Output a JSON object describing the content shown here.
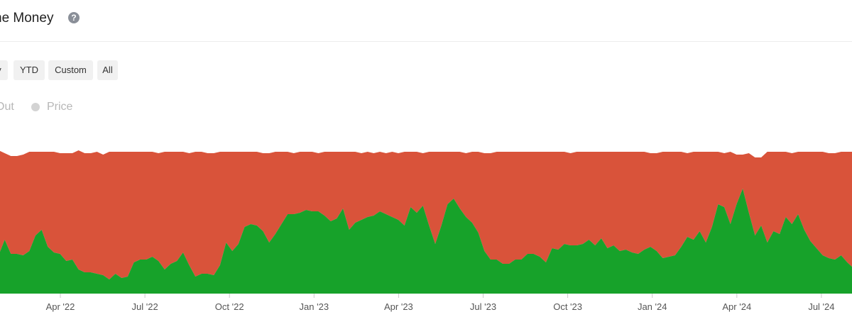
{
  "header": {
    "title": "he Money",
    "help_icon": "question-circle-icon"
  },
  "range_buttons": [
    "y",
    "YTD",
    "Custom",
    "All"
  ],
  "legend": {
    "items": [
      {
        "label": "Out",
        "color": "#d3d3d3"
      },
      {
        "label": "Price",
        "color": "#d3d3d3"
      }
    ]
  },
  "chart_data": {
    "type": "area",
    "stacked": true,
    "colors": {
      "in": "#17a22a",
      "out": "#d9533a"
    },
    "x_ticks": [
      "Apr '22",
      "Jul '22",
      "Oct '22",
      "Jan '23",
      "Apr '23",
      "Jul '23",
      "Oct '23",
      "Jan '24",
      "Apr '24",
      "Jul '24"
    ],
    "ylim": [
      0,
      100
    ],
    "series": [
      {
        "key": "in",
        "values": [
          27,
          38,
          28,
          28,
          27,
          30,
          41,
          45,
          33,
          29,
          28,
          23,
          24,
          17,
          15,
          15,
          14,
          13,
          10,
          14,
          11,
          12,
          22,
          24,
          24,
          26,
          23,
          17,
          21,
          23,
          29,
          20,
          12,
          14,
          14,
          13,
          20,
          36,
          30,
          35,
          47,
          49,
          48,
          44,
          36,
          42,
          49,
          56,
          56,
          57,
          59,
          58,
          58,
          55,
          51,
          53,
          60,
          45,
          50,
          52,
          54,
          55,
          58,
          56,
          54,
          52,
          48,
          61,
          57,
          62,
          48,
          35,
          48,
          63,
          67,
          60,
          54,
          50,
          43,
          30,
          24,
          24,
          21,
          21,
          24,
          24,
          28,
          28,
          26,
          22,
          32,
          31,
          35,
          34,
          34,
          35,
          38,
          34,
          39,
          32,
          34,
          30,
          31,
          29,
          28,
          31,
          33,
          30,
          25,
          26,
          27,
          33,
          40,
          38,
          44,
          36,
          47,
          63,
          61,
          49,
          63,
          74,
          57,
          41,
          48,
          36,
          44,
          42,
          54,
          49,
          56,
          45,
          37,
          32,
          27,
          25,
          24,
          27,
          22,
          18
        ]
      },
      {
        "key": "out",
        "values": [
          74,
          61,
          69,
          69,
          71,
          70,
          59,
          55,
          67,
          71,
          71,
          76,
          75,
          84,
          84,
          84,
          86,
          85,
          90,
          86,
          89,
          88,
          78,
          76,
          76,
          74,
          76,
          83,
          79,
          77,
          71,
          79,
          88,
          86,
          85,
          86,
          80,
          64,
          70,
          65,
          53,
          51,
          52,
          55,
          63,
          58,
          51,
          44,
          43,
          43,
          41,
          42,
          41,
          45,
          49,
          47,
          40,
          55,
          50,
          47,
          46,
          44,
          42,
          43,
          46,
          47,
          52,
          39,
          43,
          37,
          52,
          65,
          52,
          37,
          33,
          40,
          45,
          50,
          57,
          69,
          75,
          76,
          79,
          79,
          76,
          76,
          72,
          72,
          74,
          78,
          68,
          69,
          65,
          65,
          66,
          65,
          62,
          66,
          61,
          68,
          66,
          70,
          69,
          71,
          72,
          69,
          66,
          69,
          75,
          74,
          73,
          67,
          59,
          62,
          56,
          64,
          53,
          37,
          38,
          51,
          35,
          24,
          42,
          55,
          48,
          64,
          56,
          58,
          46,
          50,
          44,
          55,
          63,
          68,
          73,
          74,
          75,
          73,
          78,
          82
        ]
      }
    ]
  }
}
